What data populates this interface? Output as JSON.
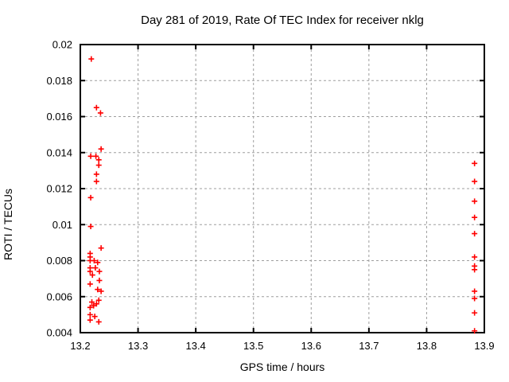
{
  "title": "Day 281 of 2019, Rate Of TEC Index for receiver nklg",
  "axes": {
    "xlabel": "GPS time / hours",
    "ylabel": "ROTI / TECUs",
    "xlim": [
      13.2,
      13.9
    ],
    "ylim": [
      0.004,
      0.02
    ],
    "x_ticks": [
      13.2,
      13.3,
      13.4,
      13.5,
      13.6,
      13.7,
      13.8,
      13.9
    ],
    "x_tick_labels": [
      "13.2",
      "13.3",
      "13.4",
      "13.5",
      "13.6",
      "13.7",
      "13.8",
      "13.9"
    ],
    "y_ticks": [
      0.004,
      0.006,
      0.008,
      0.01,
      0.012,
      0.014,
      0.016,
      0.018,
      0.02
    ],
    "y_tick_labels": [
      "0.004",
      "0.006",
      "0.008",
      "0.01",
      "0.012",
      "0.014",
      "0.016",
      "0.018",
      "0.02"
    ],
    "grid": "dashed-gray"
  },
  "colors": {
    "marker": "#ff0000",
    "border": "#000000",
    "grid": "#9e9e9e",
    "background": "#ffffff"
  },
  "chart_data": {
    "type": "scatter",
    "title": "Day 281 of 2019, Rate Of TEC Index for receiver nklg",
    "xlabel": "GPS time / hours",
    "ylabel": "ROTI / TECUs",
    "xlim": [
      13.2,
      13.9
    ],
    "ylim": [
      0.004,
      0.02
    ],
    "marker": "plus",
    "marker_color": "#ff0000",
    "legend": "none",
    "grid": true,
    "series": [
      {
        "name": "ROTI",
        "points": [
          [
            13.219,
            0.0192
          ],
          [
            13.228,
            0.0165
          ],
          [
            13.235,
            0.0162
          ],
          [
            13.236,
            0.0142
          ],
          [
            13.218,
            0.0138
          ],
          [
            13.227,
            0.0138
          ],
          [
            13.232,
            0.0136
          ],
          [
            13.232,
            0.0133
          ],
          [
            13.228,
            0.0128
          ],
          [
            13.228,
            0.0124
          ],
          [
            13.218,
            0.0115
          ],
          [
            13.218,
            0.0099
          ],
          [
            13.236,
            0.0087
          ],
          [
            13.217,
            0.0084
          ],
          [
            13.217,
            0.0082
          ],
          [
            13.217,
            0.008
          ],
          [
            13.224,
            0.008
          ],
          [
            13.23,
            0.0079
          ],
          [
            13.226,
            0.0076
          ],
          [
            13.217,
            0.0076
          ],
          [
            13.217,
            0.0074
          ],
          [
            13.233,
            0.0074
          ],
          [
            13.221,
            0.0072
          ],
          [
            13.233,
            0.0069
          ],
          [
            13.217,
            0.0067
          ],
          [
            13.23,
            0.0064
          ],
          [
            13.236,
            0.0063
          ],
          [
            13.232,
            0.0058
          ],
          [
            13.22,
            0.0057
          ],
          [
            13.228,
            0.0056
          ],
          [
            13.223,
            0.0055
          ],
          [
            13.217,
            0.0054
          ],
          [
            13.217,
            0.005
          ],
          [
            13.225,
            0.0049
          ],
          [
            13.217,
            0.0047
          ],
          [
            13.232,
            0.0046
          ],
          [
            13.883,
            0.0134
          ],
          [
            13.883,
            0.0124
          ],
          [
            13.883,
            0.0113
          ],
          [
            13.883,
            0.0104
          ],
          [
            13.883,
            0.0095
          ],
          [
            13.883,
            0.0082
          ],
          [
            13.883,
            0.0077
          ],
          [
            13.883,
            0.0075
          ],
          [
            13.883,
            0.0063
          ],
          [
            13.883,
            0.0059
          ],
          [
            13.883,
            0.0051
          ],
          [
            13.883,
            0.0041
          ]
        ]
      }
    ]
  }
}
